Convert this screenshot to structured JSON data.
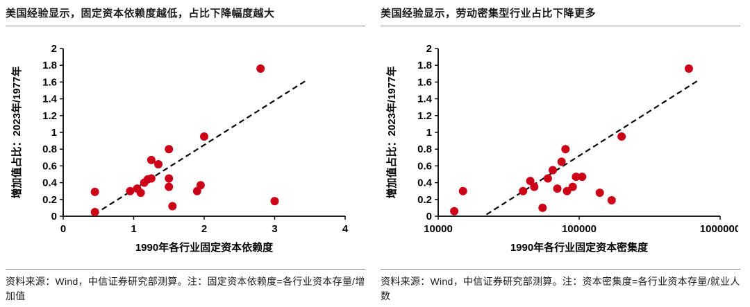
{
  "colors": {
    "point": "#cc0016",
    "trend_line": "#000000",
    "axis": "#000000"
  },
  "chart_data": [
    {
      "type": "scatter",
      "title": "美国经验显示，固定资本依赖度越低，占比下降幅度越大",
      "xlabel": "1990年各行业固定资本依赖度",
      "ylabel": "增加值占比：2023年/1977年",
      "xscale": "linear",
      "xlim": [
        0,
        4
      ],
      "ylim": [
        0,
        2
      ],
      "xticks": [
        0,
        1,
        2,
        3,
        4
      ],
      "xtick_labels": [
        "0",
        "1",
        "2",
        "3",
        "4"
      ],
      "yticks": [
        0,
        0.2,
        0.4,
        0.6,
        0.8,
        1,
        1.2,
        1.4,
        1.6,
        1.8,
        2
      ],
      "ytick_labels": [
        "0",
        "0.2",
        "0.4",
        "0.6",
        "0.8",
        "1",
        "1.2",
        "1.4",
        "1.6",
        "1.8",
        "2"
      ],
      "grid": false,
      "legend": "none",
      "points": [
        [
          0.45,
          0.29
        ],
        [
          0.45,
          0.05
        ],
        [
          0.95,
          0.3
        ],
        [
          1.05,
          0.33
        ],
        [
          1.1,
          0.28
        ],
        [
          1.15,
          0.4
        ],
        [
          1.2,
          0.44
        ],
        [
          1.25,
          0.45
        ],
        [
          1.25,
          0.67
        ],
        [
          1.35,
          0.62
        ],
        [
          1.5,
          0.8
        ],
        [
          1.5,
          0.45
        ],
        [
          1.5,
          0.35
        ],
        [
          1.55,
          0.12
        ],
        [
          1.9,
          0.3
        ],
        [
          1.95,
          0.37
        ],
        [
          2.0,
          0.95
        ],
        [
          2.8,
          1.76
        ],
        [
          3.0,
          0.18
        ]
      ],
      "trendline": {
        "x1": 0.55,
        "y1": 0.08,
        "x2": 3.45,
        "y2": 1.62
      },
      "source": "资料来源：Wind，中信证券研究部测算。注：固定资本依赖度=各行业资本存量/增加值"
    },
    {
      "type": "scatter",
      "title": "美国经验显示，劳动密集型行业占比下降更多",
      "xlabel": "1990年各行业固定资本密集度",
      "ylabel": "增加值占比：2023年/1977年",
      "xscale": "log",
      "xlim": [
        10000,
        1000000
      ],
      "ylim": [
        0,
        2
      ],
      "xticks": [
        10000,
        100000,
        1000000
      ],
      "xtick_labels": [
        "10000",
        "100000",
        "1000000"
      ],
      "yticks": [
        0,
        0.2,
        0.4,
        0.6,
        0.8,
        1,
        1.2,
        1.4,
        1.6,
        1.8,
        2
      ],
      "ytick_labels": [
        "0",
        "0.2",
        "0.4",
        "0.6",
        "0.8",
        "1",
        "1.2",
        "1.4",
        "1.6",
        "1.8",
        "2"
      ],
      "grid": false,
      "legend": "none",
      "points": [
        [
          13000,
          0.06
        ],
        [
          15000,
          0.3
        ],
        [
          40000,
          0.3
        ],
        [
          45000,
          0.42
        ],
        [
          48000,
          0.35
        ],
        [
          55000,
          0.1
        ],
        [
          60000,
          0.45
        ],
        [
          65000,
          0.55
        ],
        [
          70000,
          0.33
        ],
        [
          75000,
          0.65
        ],
        [
          80000,
          0.8
        ],
        [
          82000,
          0.3
        ],
        [
          90000,
          0.35
        ],
        [
          95000,
          0.47
        ],
        [
          105000,
          0.47
        ],
        [
          140000,
          0.28
        ],
        [
          170000,
          0.19
        ],
        [
          200000,
          0.95
        ],
        [
          600000,
          1.76
        ]
      ],
      "trendline": {
        "x1": 22000,
        "y1": 0.02,
        "x2": 700000,
        "y2": 1.62
      },
      "source": "资料来源：Wind，中信证券研究部测算。注：资本密集度=各行业资本存量/就业人数"
    }
  ]
}
